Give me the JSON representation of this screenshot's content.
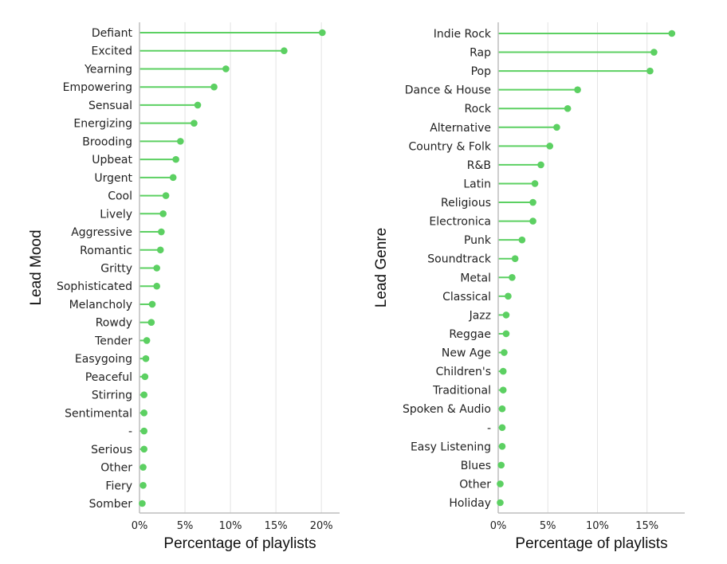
{
  "chart_data": [
    {
      "type": "lollipop",
      "orientation": "horizontal",
      "color": "#5cd062",
      "xlabel": "Percentage of playlists",
      "ylabel": "Lead Mood",
      "xlim": [
        0,
        0.22
      ],
      "xticks": [
        0,
        0.05,
        0.1,
        0.15,
        0.2
      ],
      "xtick_labels": [
        "0%",
        "5%",
        "10%",
        "15%",
        "20%"
      ],
      "grid": "vertical",
      "categories": [
        "Defiant",
        "Excited",
        "Yearning",
        "Empowering",
        "Sensual",
        "Energizing",
        "Brooding",
        "Upbeat",
        "Urgent",
        "Cool",
        "Lively",
        "Aggressive",
        "Romantic",
        "Gritty",
        "Sophisticated",
        "Melancholy",
        "Rowdy",
        "Tender",
        "Easygoing",
        "Peaceful",
        "Stirring",
        "Sentimental",
        "-",
        "Serious",
        "Other",
        "Fiery",
        "Somber"
      ],
      "values": [
        0.201,
        0.159,
        0.095,
        0.082,
        0.064,
        0.06,
        0.045,
        0.04,
        0.037,
        0.029,
        0.026,
        0.024,
        0.023,
        0.019,
        0.019,
        0.014,
        0.013,
        0.008,
        0.007,
        0.006,
        0.005,
        0.005,
        0.005,
        0.005,
        0.004,
        0.004,
        0.003
      ]
    },
    {
      "type": "lollipop",
      "orientation": "horizontal",
      "color": "#5cd062",
      "xlabel": "Percentage of playlists",
      "ylabel": "Lead Genre",
      "xlim": [
        0,
        0.188
      ],
      "xticks": [
        0,
        0.05,
        0.1,
        0.15
      ],
      "xtick_labels": [
        "0%",
        "5%",
        "10%",
        "15%"
      ],
      "grid": "vertical",
      "categories": [
        "Indie Rock",
        "Rap",
        "Pop",
        "Dance & House",
        "Rock",
        "Alternative",
        "Country & Folk",
        "R&B",
        "Latin",
        "Religious",
        "Electronica",
        "Punk",
        "Soundtrack",
        "Metal",
        "Classical",
        "Jazz",
        "Reggae",
        "New Age",
        "Children's",
        "Traditional",
        "Spoken & Audio",
        "-",
        "Easy Listening",
        "Blues",
        "Other",
        "Holiday"
      ],
      "values": [
        0.175,
        0.157,
        0.153,
        0.08,
        0.07,
        0.059,
        0.052,
        0.043,
        0.037,
        0.035,
        0.035,
        0.024,
        0.017,
        0.014,
        0.01,
        0.008,
        0.008,
        0.006,
        0.005,
        0.005,
        0.004,
        0.004,
        0.004,
        0.003,
        0.002,
        0.002
      ]
    }
  ]
}
